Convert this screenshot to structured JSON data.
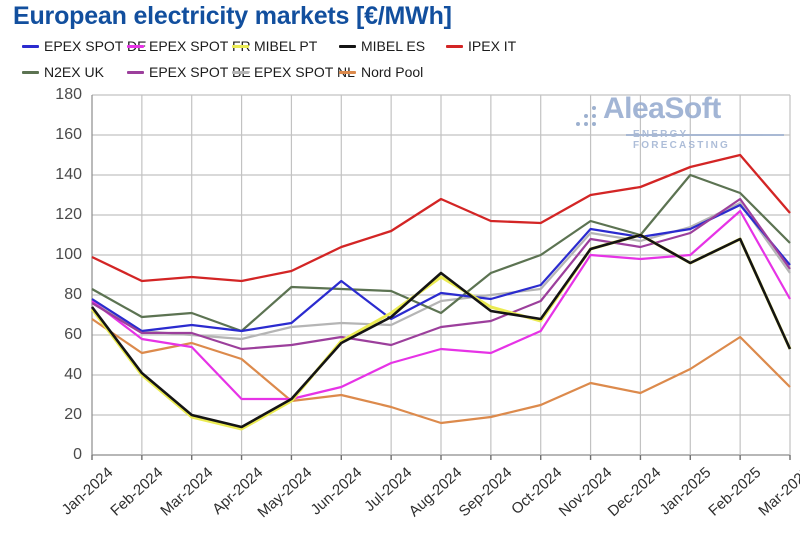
{
  "title": "European electricity markets [€/MWh]",
  "watermark": {
    "name": "AleaSoft",
    "subtitle": "ENERGY FORECASTING"
  },
  "chart_data": {
    "type": "line",
    "title": "European electricity markets [€/MWh]",
    "xlabel": "",
    "ylabel": "€/MWh",
    "ylim": [
      0,
      180
    ],
    "ytick_step": 20,
    "grid": true,
    "legend_position": "top",
    "categories": [
      "Jan-2024",
      "Feb-2024",
      "Mar-2024",
      "Apr-2024",
      "May-2024",
      "Jun-2024",
      "Jul-2024",
      "Aug-2024",
      "Sep-2024",
      "Oct-2024",
      "Nov-2024",
      "Dec-2024",
      "Jan-2025",
      "Feb-2025",
      "Mar-2025"
    ],
    "series": [
      {
        "name": "EPEX SPOT DE",
        "color": "#2b2bcf",
        "values": [
          78,
          62,
          65,
          62,
          66,
          87,
          68,
          81,
          78,
          85,
          113,
          109,
          113,
          125,
          95
        ]
      },
      {
        "name": "EPEX SPOT FR",
        "color": "#e633e6",
        "values": [
          77,
          58,
          54,
          28,
          28,
          34,
          46,
          53,
          51,
          62,
          100,
          98,
          100,
          122,
          78
        ]
      },
      {
        "name": "MIBEL PT",
        "color": "#ebeb52",
        "values": [
          73,
          40,
          19,
          13,
          27,
          57,
          71,
          89,
          74,
          67,
          103,
          110,
          96,
          108,
          53
        ]
      },
      {
        "name": "MIBEL ES",
        "color": "#141414",
        "values": [
          74,
          41,
          20,
          14,
          28,
          56,
          69,
          91,
          72,
          68,
          103,
          110,
          96,
          108,
          53
        ]
      },
      {
        "name": "IPEX IT",
        "color": "#d32525",
        "values": [
          99,
          87,
          89,
          87,
          92,
          104,
          112,
          128,
          117,
          116,
          130,
          134,
          144,
          150,
          121
        ]
      },
      {
        "name": "N2EX UK",
        "color": "#5c7352",
        "values": [
          83,
          69,
          71,
          62,
          84,
          83,
          82,
          71,
          91,
          100,
          117,
          110,
          140,
          131,
          106
        ]
      },
      {
        "name": "EPEX SPOT BE",
        "color": "#9c3f9c",
        "values": [
          76,
          61,
          61,
          53,
          55,
          59,
          55,
          64,
          67,
          77,
          108,
          104,
          111,
          128,
          93
        ]
      },
      {
        "name": "EPEX SPOT NL",
        "color": "#b5b5b5",
        "values": [
          77,
          62,
          60,
          58,
          64,
          66,
          65,
          77,
          80,
          83,
          111,
          107,
          114,
          126,
          91
        ]
      },
      {
        "name": "Nord Pool",
        "color": "#dc8a4c",
        "values": [
          68,
          51,
          56,
          48,
          27,
          30,
          24,
          16,
          19,
          25,
          36,
          31,
          43,
          59,
          34
        ]
      }
    ],
    "draw_order": [
      "Nord Pool",
      "EPEX SPOT NL",
      "N2EX UK",
      "EPEX SPOT FR",
      "EPEX SPOT DE",
      "EPEX SPOT BE",
      "MIBEL PT",
      "MIBEL ES",
      "IPEX IT"
    ]
  }
}
